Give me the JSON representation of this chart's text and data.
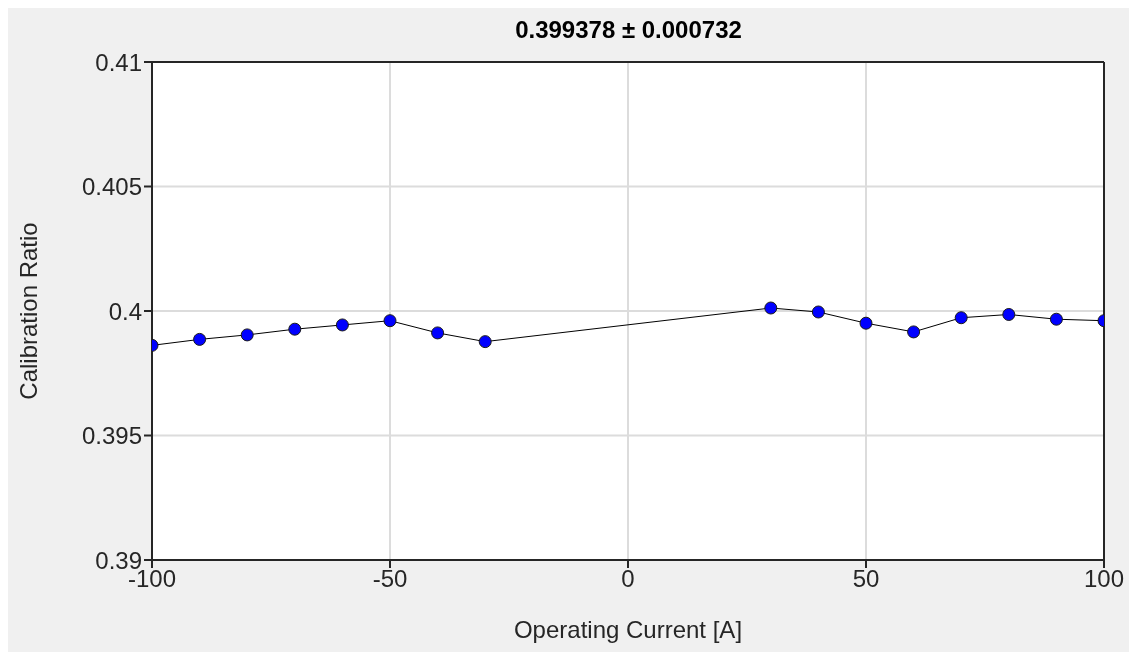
{
  "chart_data": {
    "type": "line",
    "title": "0.399378 ± 0.000732",
    "xlabel": "Operating Current [A]",
    "ylabel": "Calibration Ratio",
    "x": [
      -100,
      -90,
      -80,
      -70,
      -60,
      -50,
      -40,
      -30,
      30,
      40,
      50,
      60,
      70,
      80,
      90,
      100
    ],
    "series": [
      {
        "color": "#0000ff",
        "values": [
          0.39862,
          0.39886,
          0.39904,
          0.39927,
          0.39944,
          0.39961,
          0.39912,
          0.39877,
          0.40012,
          0.39996,
          0.39951,
          0.39916,
          0.39973,
          0.39986,
          0.39967,
          0.39961
        ]
      }
    ],
    "xlim": [
      -100,
      100
    ],
    "xticks": [
      -100,
      -50,
      0,
      50,
      100
    ],
    "ylim": [
      0.39,
      0.41
    ],
    "yticks": [
      0.39,
      0.395,
      0.4,
      0.405,
      0.41
    ],
    "grid": true,
    "marker": "circle",
    "line_style": "solid"
  }
}
